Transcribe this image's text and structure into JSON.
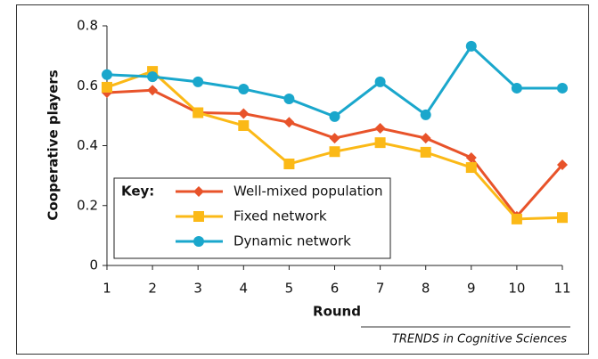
{
  "chart_data": {
    "type": "line",
    "x": [
      1,
      2,
      3,
      4,
      5,
      6,
      7,
      8,
      9,
      10,
      11
    ],
    "xlim": [
      1,
      11
    ],
    "xticks": [
      1,
      2,
      3,
      4,
      5,
      6,
      7,
      8,
      9,
      10,
      11
    ],
    "ylim": [
      0,
      0.8
    ],
    "yticks": [
      0,
      0.2,
      0.4,
      0.6,
      0.8
    ],
    "xlabel": "Round",
    "ylabel": "Cooperative players",
    "legend_title": "Key:",
    "legend": "lower-left",
    "grid": false,
    "source": "TRENDS in Cognitive Sciences",
    "series": [
      {
        "name": "Well-mixed population",
        "color": "#e8532a",
        "marker": "diamond",
        "values": [
          0.577,
          0.585,
          0.51,
          0.507,
          0.478,
          0.425,
          0.458,
          0.425,
          0.36,
          0.164,
          0.336
        ]
      },
      {
        "name": "Fixed network",
        "color": "#fbb917",
        "marker": "square",
        "values": [
          0.595,
          0.648,
          0.51,
          0.467,
          0.339,
          0.38,
          0.41,
          0.378,
          0.327,
          0.155,
          0.16
        ]
      },
      {
        "name": "Dynamic network",
        "color": "#1aa7cc",
        "marker": "circle",
        "values": [
          0.637,
          0.63,
          0.613,
          0.589,
          0.556,
          0.497,
          0.613,
          0.503,
          0.732,
          0.592,
          0.592
        ]
      }
    ]
  }
}
